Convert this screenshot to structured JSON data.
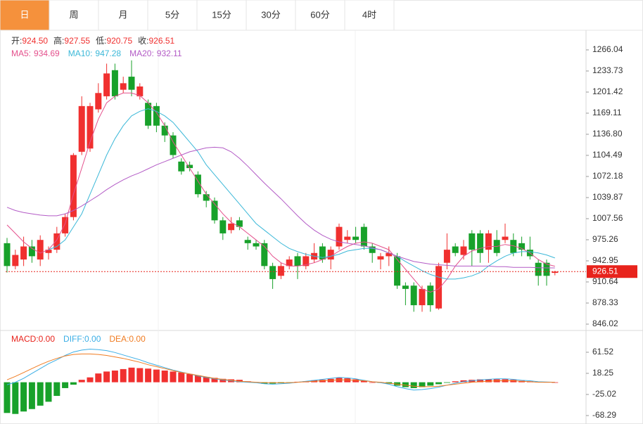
{
  "tabs": [
    "日",
    "周",
    "月",
    "5分",
    "15分",
    "30分",
    "60分",
    "4时"
  ],
  "chart_data": [
    {
      "type": "candlestick",
      "header": [
        {
          "label": "开:",
          "value": "924.50"
        },
        {
          "label": "高:",
          "value": "927.55"
        },
        {
          "label": "低:",
          "value": "920.75"
        },
        {
          "label": "收:",
          "value": "926.51"
        }
      ],
      "open": [
        970,
        935,
        945,
        965,
        945,
        955,
        960,
        985,
        1010,
        1110,
        1115,
        1175,
        1195,
        1235,
        1205,
        1225,
        1195,
        1185,
        1180,
        1150,
        1135,
        1095,
        1090,
        1075,
        1045,
        1035,
        1005,
        990,
        1005,
        975,
        970,
        970,
        935,
        920,
        935,
        950,
        935,
        945,
        965,
        945,
        965,
        975,
        980,
        995,
        965,
        945,
        950,
        950,
        905,
        905,
        875,
        905,
        870,
        940,
        965,
        952,
        985,
        985,
        960,
        975,
        975,
        975,
        970,
        960,
        940,
        940,
        924.5
      ],
      "high": [
        978,
        960,
        980,
        975,
        982,
        965,
        995,
        1015,
        1108,
        1195,
        1185,
        1215,
        1245,
        1245,
        1225,
        1250,
        1215,
        1190,
        1185,
        1155,
        1140,
        1100,
        1095,
        1080,
        1050,
        1040,
        1010,
        1010,
        1010,
        980,
        975,
        975,
        940,
        940,
        950,
        955,
        955,
        970,
        970,
        965,
        1000,
        990,
        995,
        1000,
        970,
        955,
        965,
        955,
        910,
        910,
        905,
        910,
        940,
        985,
        970,
        975,
        990,
        990,
        990,
        990,
        1000,
        985,
        980,
        980,
        945,
        945,
        927.55
      ],
      "low": [
        925,
        930,
        935,
        940,
        935,
        945,
        955,
        980,
        1005,
        1105,
        1110,
        1170,
        1190,
        1190,
        1200,
        1195,
        1190,
        1145,
        1140,
        1125,
        1100,
        1075,
        1080,
        1040,
        1025,
        1000,
        975,
        985,
        990,
        960,
        960,
        930,
        900,
        915,
        930,
        915,
        930,
        940,
        940,
        930,
        960,
        970,
        970,
        960,
        940,
        930,
        935,
        900,
        875,
        865,
        865,
        865,
        868,
        930,
        950,
        945,
        935,
        940,
        940,
        950,
        970,
        950,
        950,
        945,
        905,
        905,
        920.75
      ],
      "close": [
        935,
        952,
        965,
        950,
        975,
        960,
        985,
        1010,
        1105,
        1180,
        1180,
        1200,
        1230,
        1195,
        1215,
        1205,
        1210,
        1150,
        1150,
        1135,
        1105,
        1080,
        1085,
        1045,
        1035,
        1005,
        985,
        1000,
        995,
        970,
        965,
        935,
        915,
        935,
        945,
        935,
        950,
        955,
        945,
        960,
        995,
        980,
        975,
        965,
        955,
        950,
        955,
        905,
        900,
        875,
        900,
        875,
        935,
        960,
        955,
        965,
        960,
        955,
        985,
        955,
        980,
        955,
        960,
        950,
        920,
        920,
        926.51
      ],
      "up_color": "#f0302f",
      "down_color": "#18a12a",
      "series": [
        {
          "name": "MA5:",
          "value_label": "934.69",
          "color": "#e4508c",
          "values": [
            998,
            985,
            972,
            962,
            955,
            960,
            975,
            1000,
            1045,
            1085,
            1125,
            1160,
            1185,
            1195,
            1200,
            1200,
            1196,
            1185,
            1170,
            1150,
            1125,
            1105,
            1085,
            1065,
            1045,
            1030,
            1015,
            1002,
            995,
            985,
            975,
            965,
            950,
            940,
            935,
            935,
            937,
            940,
            945,
            950,
            958,
            965,
            970,
            972,
            970,
            965,
            960,
            945,
            930,
            915,
            900,
            895,
            900,
            915,
            935,
            950,
            958,
            962,
            965,
            965,
            968,
            966,
            962,
            955,
            945,
            938,
            934.69
          ]
        },
        {
          "name": "MA10:",
          "value_label": "947.28",
          "color": "#3bb8d8",
          "values": [
            null,
            null,
            null,
            null,
            null,
            960,
            965,
            975,
            995,
            1015,
            1045,
            1075,
            1105,
            1130,
            1150,
            1165,
            1172,
            1176,
            1172,
            1165,
            1155,
            1140,
            1125,
            1110,
            1090,
            1075,
            1060,
            1045,
            1030,
            1015,
            1000,
            990,
            980,
            970,
            962,
            957,
            953,
            950,
            948,
            950,
            953,
            958,
            960,
            962,
            962,
            960,
            955,
            950,
            942,
            935,
            928,
            922,
            918,
            915,
            915,
            917,
            920,
            925,
            935,
            943,
            950,
            955,
            957,
            957,
            955,
            952,
            947.28
          ]
        },
        {
          "name": "MA20:",
          "value_label": "932.11",
          "color": "#b35bc6",
          "values": [
            1025,
            1020,
            1017,
            1015,
            1013,
            1012,
            1012,
            1015,
            1020,
            1027,
            1035,
            1043,
            1052,
            1060,
            1067,
            1073,
            1078,
            1084,
            1090,
            1095,
            1100,
            1105,
            1110,
            1113,
            1116,
            1117,
            1116,
            1110,
            1100,
            1088,
            1075,
            1062,
            1050,
            1038,
            1025,
            1012,
            1000,
            990,
            982,
            976,
            972,
            970,
            968,
            966,
            963,
            960,
            955,
            950,
            946,
            942,
            940,
            938,
            937,
            936,
            935,
            935,
            935,
            935,
            935,
            934,
            934,
            933,
            933,
            933,
            932.5,
            932.2,
            932.11
          ]
        }
      ],
      "current_price": 926.51,
      "current_color": "#e8231c",
      "ylim": [
        836.3,
        1294
      ],
      "yticks": [
        1266.04,
        1233.73,
        1201.42,
        1169.11,
        {
          "value": 1136.8,
          "label": "1136.80"
        },
        1104.49,
        1072.18,
        1039.87,
        1007.56,
        975.26,
        942.95,
        910.64,
        878.33,
        846.02
      ]
    },
    {
      "type": "macd",
      "header": [
        {
          "label": "MACD:",
          "value": "0.00",
          "color": "#e8231c"
        },
        {
          "label": "DIFF:",
          "value": "0.00",
          "color": "#3aaee6"
        },
        {
          "label": "DEA:",
          "value": "0.00",
          "color": "#f07c22"
        }
      ],
      "values": [
        -63,
        -65,
        -60,
        -55,
        -48,
        -40,
        -28,
        -12,
        -5,
        5,
        10,
        18,
        22,
        24,
        27,
        30,
        29,
        28,
        26,
        24,
        22,
        20,
        17,
        14,
        11,
        9,
        7,
        6,
        5,
        2,
        -1,
        -3,
        -3,
        -2,
        -1,
        1,
        2,
        4,
        5,
        7,
        9,
        8,
        6,
        3,
        0,
        -1,
        -3,
        -7,
        -10,
        -12,
        -10,
        -7,
        -4,
        -1,
        2,
        4,
        5,
        6,
        6,
        6,
        6,
        5,
        3,
        2,
        1,
        0.5,
        0
      ],
      "up_color": "#f0302f",
      "down_color": "#18a12a",
      "series": [
        {
          "name": "DIFF",
          "color": "#3aaee6",
          "values": [
            -5,
            0,
            8,
            18,
            28,
            38,
            46,
            55,
            62,
            66,
            68,
            67,
            65,
            61,
            56,
            51,
            46,
            40,
            35,
            30,
            25,
            21,
            17,
            13,
            10,
            7,
            5,
            3,
            1,
            0,
            -1,
            -3,
            -4,
            -3,
            -2,
            0,
            2,
            4,
            6,
            8,
            10,
            9,
            7,
            4,
            1,
            -1,
            -4,
            -9,
            -13,
            -16,
            -15,
            -13,
            -10,
            -6,
            -2,
            1,
            3,
            5,
            6,
            7,
            7,
            6,
            4,
            3,
            1,
            0.5,
            0
          ]
        },
        {
          "name": "DEA",
          "color": "#f07c22",
          "values": [
            5,
            12,
            20,
            28,
            36,
            43,
            49,
            54,
            57,
            58,
            58,
            57,
            55,
            52,
            49,
            45,
            41,
            36,
            32,
            28,
            24,
            20,
            17,
            14,
            11,
            8,
            6,
            4,
            2,
            1,
            0,
            -1,
            -1,
            -1,
            -1,
            0,
            1,
            2,
            3,
            4,
            5,
            5,
            4,
            3,
            1,
            0,
            -2,
            -4,
            -6,
            -8,
            -9,
            -9,
            -8,
            -6,
            -4,
            -2,
            0,
            1,
            2,
            3,
            3,
            3,
            2,
            1,
            0,
            0,
            0
          ]
        }
      ],
      "ylim": [
        -81.3,
        103.3
      ],
      "yticks": [
        61.52,
        18.25,
        -25.02,
        -68.29
      ]
    }
  ]
}
